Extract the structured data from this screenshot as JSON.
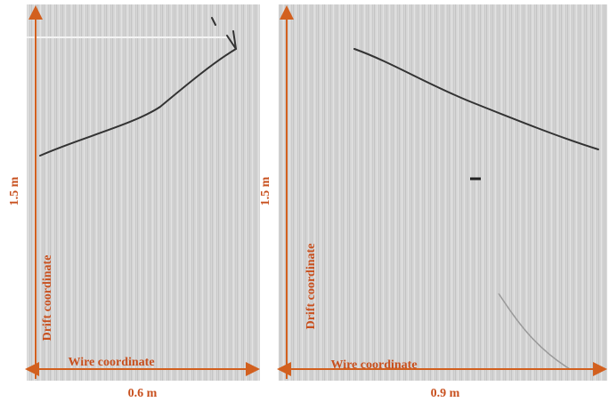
{
  "panels": [
    {
      "height_label": "1.5 m",
      "y_axis_label": "Drift coordinate",
      "x_axis_label": "Wire coordinate",
      "width_label": "0.6 m"
    },
    {
      "height_label": "1.5 m",
      "y_axis_label": "Drift coordinate",
      "x_axis_label": "Wire coordinate",
      "width_label": "0.9 m"
    }
  ]
}
